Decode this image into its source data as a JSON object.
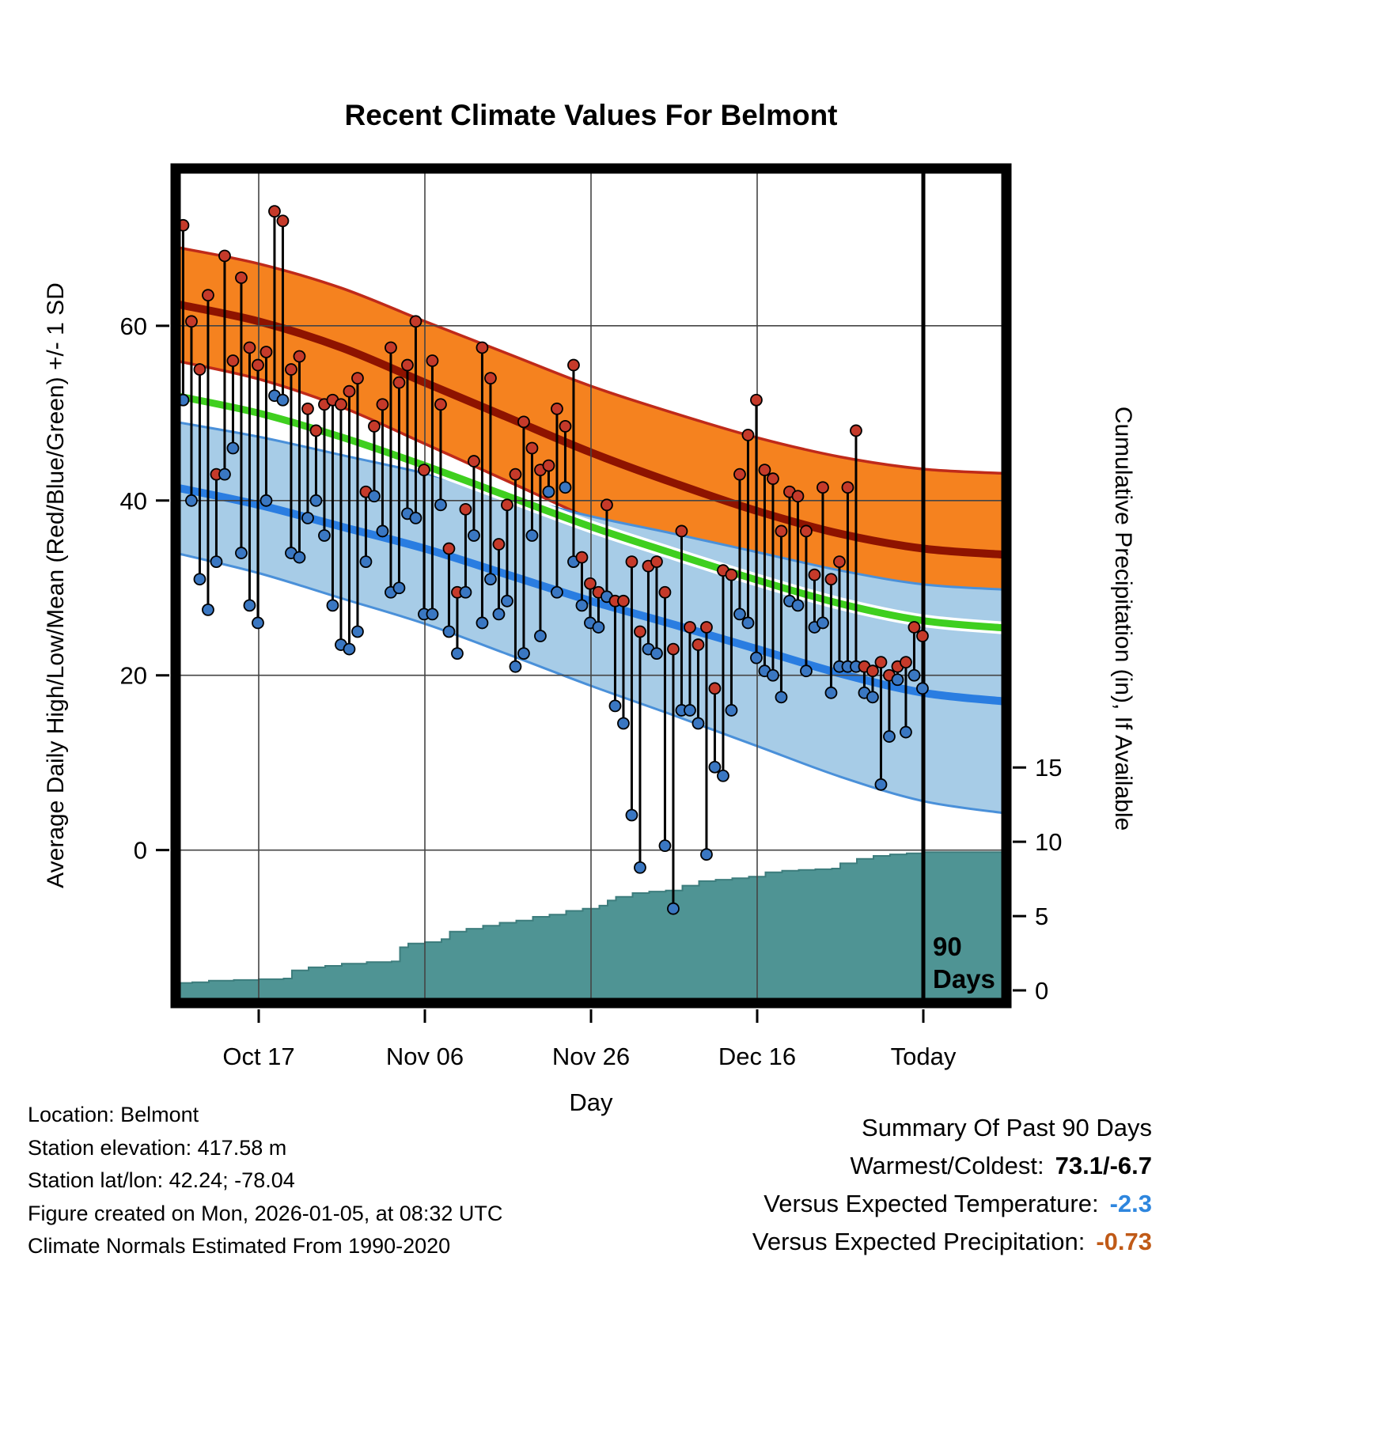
{
  "colors": {
    "high_band": "#f5821f",
    "high_band_edge": "#bf2a1a",
    "high_mean_line": "#8e1300",
    "low_band": "#a7cce7",
    "low_band_edge": "#4a90d9",
    "low_mean_line": "#2a7de1",
    "mean_line_green": "#3fcf1f",
    "mean_line_case": "#ffffff",
    "high_marker": "#c53a2a",
    "low_marker": "#3a77c2",
    "observation_line": "#000000",
    "precip_fill": "#4f9494",
    "precip_edge": "#3d7d7d",
    "grid": "#444444",
    "today_line": "#000000",
    "temp_anomaly_color": "#2e86de",
    "precip_anomaly_color": "#c05a17"
  },
  "chart_data": {
    "type": "line",
    "title": "Recent Climate Values For Belmont",
    "xlabel": "Day",
    "ylabel_left": "Average Daily High/Low/Mean (Red/Blue/Green) +/- 1 SD",
    "ylabel_right": "Cumulative Precipitation (in), If Available",
    "x_range": [
      0,
      100
    ],
    "yleft_range": [
      -17.5,
      78
    ],
    "yright_range": [
      -0.85,
      55.3
    ],
    "yleft_ticks": [
      0,
      20,
      40,
      60
    ],
    "yright_ticks": [
      0,
      5,
      10,
      15
    ],
    "x_ticks": [
      {
        "day": 10,
        "label": "Oct 17"
      },
      {
        "day": 30,
        "label": "Nov 06"
      },
      {
        "day": 50,
        "label": "Nov 26"
      },
      {
        "day": 70,
        "label": "Dec 16"
      },
      {
        "day": 90,
        "label": "Today"
      }
    ],
    "marker_day": 90,
    "marker_label": [
      "90",
      "Days"
    ],
    "normals": {
      "days": [
        0,
        10,
        20,
        30,
        40,
        50,
        60,
        70,
        80,
        90,
        100
      ],
      "high_mean": [
        62.5,
        60.5,
        57.5,
        53.5,
        49.5,
        45.5,
        42,
        38.8,
        36.2,
        34.5,
        33.8
      ],
      "high_sd": [
        6.5,
        6.6,
        6.8,
        7,
        7.3,
        7.6,
        8,
        8.4,
        8.8,
        9.1,
        9.3
      ],
      "low_mean": [
        41.5,
        39.5,
        37,
        34.5,
        31.5,
        28.5,
        25.8,
        23,
        20.2,
        18,
        17
      ],
      "low_sd": [
        7.5,
        7.8,
        8.2,
        8.6,
        9.1,
        9.7,
        10.4,
        11.1,
        11.8,
        12.4,
        12.8
      ]
    },
    "daily": {
      "day_start": 0.9,
      "day_step": 1.0,
      "high": [
        71.5,
        60.5,
        55,
        63.5,
        43,
        68,
        56,
        65.5,
        57.5,
        55.5,
        57,
        73.1,
        72,
        55,
        56.5,
        50.5,
        48,
        51,
        51.5,
        51,
        52.5,
        54,
        41,
        48.5,
        51,
        57.5,
        53.5,
        55.5,
        60.5,
        43.5,
        56,
        51,
        34.5,
        29.5,
        39,
        44.5,
        57.5,
        54,
        35,
        39.5,
        43,
        49,
        46,
        43.5,
        44,
        50.5,
        48.5,
        55.5,
        33.5,
        30.5,
        29.5,
        39.5,
        28.5,
        28.5,
        33,
        25,
        32.5,
        33,
        29.5,
        23,
        36.5,
        25.5,
        23.5,
        25.5,
        18.5,
        32,
        31.5,
        43,
        47.5,
        51.5,
        43.5,
        42.5,
        36.5,
        41,
        40.5,
        36.5,
        31.5,
        41.5,
        31,
        33,
        41.5,
        48,
        21,
        20.5,
        21.5,
        20,
        21,
        21.5,
        25.5,
        24.5
      ],
      "low": [
        51.5,
        40,
        31,
        27.5,
        33,
        43,
        46,
        34,
        28,
        26,
        40,
        52,
        51.5,
        34,
        33.5,
        38,
        40,
        36,
        28,
        23.5,
        23,
        25,
        33,
        40.5,
        36.5,
        29.5,
        30,
        38.5,
        38,
        27,
        27,
        39.5,
        25,
        22.5,
        29.5,
        36,
        26,
        31,
        27,
        28.5,
        21,
        22.5,
        36,
        24.5,
        41,
        29.5,
        41.5,
        33,
        28,
        26,
        25.5,
        29,
        16.5,
        14.5,
        4,
        -2,
        23,
        22.5,
        0.5,
        -6.7,
        16,
        16,
        14.5,
        -0.5,
        9.5,
        8.5,
        16,
        27,
        26,
        22,
        20.5,
        20,
        17.5,
        28.5,
        28,
        20.5,
        25.5,
        26,
        18,
        21,
        21,
        21,
        18,
        17.5,
        7.5,
        13,
        19.5,
        13.5,
        20,
        18.5
      ]
    },
    "precip_cumulative": [
      [
        0,
        0.5
      ],
      [
        2,
        0.55
      ],
      [
        4,
        0.65
      ],
      [
        7,
        0.7
      ],
      [
        10,
        0.75
      ],
      [
        13,
        0.8
      ],
      [
        14,
        1.35
      ],
      [
        16,
        1.55
      ],
      [
        18,
        1.65
      ],
      [
        20,
        1.8
      ],
      [
        23,
        1.9
      ],
      [
        26,
        1.95
      ],
      [
        27,
        2.9
      ],
      [
        28,
        3.15
      ],
      [
        30,
        3.25
      ],
      [
        32,
        3.45
      ],
      [
        33,
        3.95
      ],
      [
        35,
        4.15
      ],
      [
        37,
        4.35
      ],
      [
        39,
        4.55
      ],
      [
        41,
        4.7
      ],
      [
        43,
        4.95
      ],
      [
        45,
        5.1
      ],
      [
        47,
        5.35
      ],
      [
        49,
        5.5
      ],
      [
        51,
        5.7
      ],
      [
        52,
        6.05
      ],
      [
        53,
        6.3
      ],
      [
        55,
        6.55
      ],
      [
        57,
        6.65
      ],
      [
        59,
        6.72
      ],
      [
        61,
        7.05
      ],
      [
        63,
        7.35
      ],
      [
        65,
        7.45
      ],
      [
        67,
        7.55
      ],
      [
        69,
        7.65
      ],
      [
        71,
        7.95
      ],
      [
        73,
        8.05
      ],
      [
        75,
        8.1
      ],
      [
        77,
        8.15
      ],
      [
        79,
        8.2
      ],
      [
        80,
        8.55
      ],
      [
        82,
        8.85
      ],
      [
        84,
        9.05
      ],
      [
        86,
        9.15
      ],
      [
        88,
        9.22
      ],
      [
        90,
        9.3
      ],
      [
        100,
        9.3
      ]
    ]
  },
  "station_info": {
    "location": "Location: Belmont",
    "elevation": "Station elevation: 417.58 m",
    "lat_lon": "Station lat/lon: 42.24; -78.04",
    "created": "Figure created on Mon, 2026-01-05, at 08:32 UTC",
    "normals_note": "Climate Normals Estimated From 1990-2020"
  },
  "summary": {
    "title": "Summary Of Past 90 Days",
    "warmest_coldest_label": "Warmest/Coldest:",
    "warmest_coldest_value": "73.1/-6.7",
    "vs_temperature_label": "Versus Expected Temperature:",
    "vs_temperature_value": "-2.3",
    "vs_precipitation_label": "Versus Expected Precipitation:",
    "vs_precipitation_value": "-0.73"
  }
}
